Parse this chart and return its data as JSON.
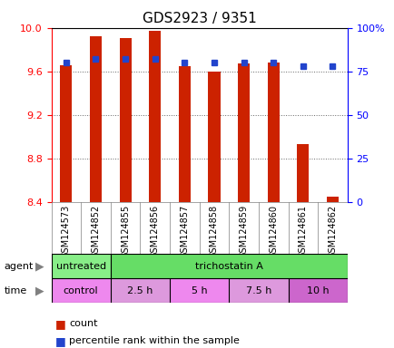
{
  "title": "GDS2923 / 9351",
  "samples": [
    "GSM124573",
    "GSM124852",
    "GSM124855",
    "GSM124856",
    "GSM124857",
    "GSM124858",
    "GSM124859",
    "GSM124860",
    "GSM124861",
    "GSM124862"
  ],
  "bar_heights": [
    9.66,
    9.92,
    9.91,
    9.97,
    9.65,
    9.6,
    9.67,
    9.68,
    8.93,
    8.45
  ],
  "bar_bottom": 8.4,
  "percentile_values": [
    80,
    82,
    82,
    82,
    80,
    80,
    80,
    80,
    78,
    78
  ],
  "ylim_left": [
    8.4,
    10.0
  ],
  "ylim_right": [
    0,
    100
  ],
  "yticks_left": [
    8.4,
    8.8,
    9.2,
    9.6,
    10.0
  ],
  "yticks_right": [
    0,
    25,
    50,
    75,
    100
  ],
  "ytick_labels_right": [
    "0",
    "25",
    "50",
    "75",
    "100%"
  ],
  "bar_color": "#cc2200",
  "percentile_color": "#2244cc",
  "grid_color": "#666666",
  "agent_row": {
    "untreated_span": [
      0,
      2
    ],
    "trichostatin_span": [
      2,
      10
    ],
    "untreated_color": "#88ee88",
    "trichostatin_color": "#66dd66"
  },
  "time_row": {
    "groups": [
      {
        "label": "control",
        "span": [
          0,
          2
        ],
        "color": "#ee88ee"
      },
      {
        "label": "2.5 h",
        "span": [
          2,
          4
        ],
        "color": "#dd99dd"
      },
      {
        "label": "5 h",
        "span": [
          4,
          6
        ],
        "color": "#ee88ee"
      },
      {
        "label": "7.5 h",
        "span": [
          6,
          8
        ],
        "color": "#dd99dd"
      },
      {
        "label": "10 h",
        "span": [
          8,
          10
        ],
        "color": "#cc66cc"
      }
    ]
  },
  "legend_items": [
    {
      "color": "#cc2200",
      "label": "count"
    },
    {
      "color": "#2244cc",
      "label": "percentile rank within the sample"
    }
  ]
}
